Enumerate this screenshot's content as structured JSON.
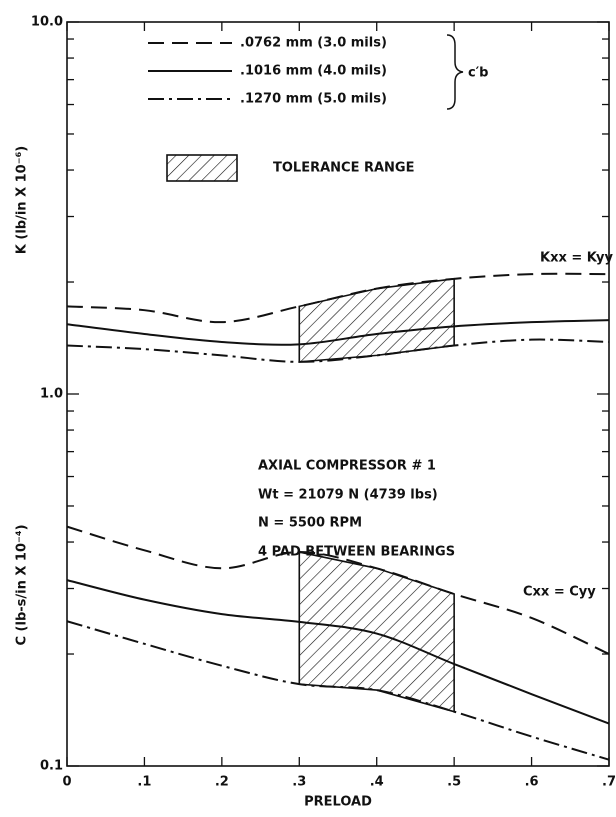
{
  "chart_data": {
    "type": "line",
    "x_label": "PRELOAD",
    "y_labels": [
      "K (lb/in X 10⁻⁶)",
      "C (lb-s/in X 10⁻⁴)"
    ],
    "x": [
      0,
      0.1,
      0.2,
      0.3,
      0.4,
      0.5,
      0.6,
      0.7
    ],
    "xlim": [
      0,
      0.7
    ],
    "xticks": [
      0,
      {
        "value": 0.1,
        "label": ".1"
      },
      {
        "value": 0.2,
        "label": ".2"
      },
      {
        "value": 0.3,
        "label": ".3"
      },
      {
        "value": 0.4,
        "label": ".4"
      },
      {
        "value": 0.5,
        "label": ".5"
      },
      {
        "value": 0.6,
        "label": ".6"
      },
      {
        "value": 0.7,
        "label": ".7"
      }
    ],
    "ylim": [
      0.1,
      10
    ],
    "log_y": true,
    "yticks": [
      0.1,
      {
        "value": 1,
        "label": "1.0"
      },
      {
        "value": 10,
        "label": "10.0"
      }
    ],
    "minor_yticks": [
      0.2,
      0.3,
      0.4,
      0.5,
      0.6,
      0.7,
      0.8,
      0.9,
      2,
      3,
      4,
      5,
      6,
      7,
      8,
      9
    ],
    "legend_title": "c′b",
    "series": [
      {
        "name": ".0762 mm (3.0 mils)",
        "style": "dashed",
        "color": "#111",
        "k_values": [
          1.72,
          1.68,
          1.56,
          1.72,
          1.92,
          2.04,
          2.1,
          2.1
        ],
        "c_values": [
          0.44,
          0.38,
          0.34,
          0.376,
          0.34,
          0.29,
          0.25,
          0.2
        ]
      },
      {
        "name": ".1016 mm (4.0 mils)",
        "style": "solid",
        "color": "#111",
        "k_values": [
          1.54,
          1.45,
          1.38,
          1.36,
          1.45,
          1.52,
          1.56,
          1.58
        ],
        "c_values": [
          0.316,
          0.28,
          0.256,
          0.244,
          0.227,
          0.188,
          0.156,
          0.13
        ]
      },
      {
        "name": ".1270 mm (5.0 mils)",
        "style": "dashdot",
        "color": "#111",
        "k_values": [
          1.35,
          1.32,
          1.27,
          1.22,
          1.27,
          1.35,
          1.4,
          1.38
        ],
        "c_values": [
          0.245,
          0.213,
          0.186,
          0.166,
          0.16,
          0.14,
          0.12,
          0.104
        ]
      }
    ],
    "tolerance": {
      "label": "TOLERANCE RANGE",
      "x_range": [
        0.3,
        0.5
      ]
    },
    "curve_labels": [
      "Kxx = Kyy",
      "Cxx = Cyy"
    ],
    "annotations": [
      "AXIAL COMPRESSOR # 1",
      "Wt = 21079 N (4739 lbs)",
      "N = 5500 RPM",
      "4 PAD BETWEEN BEARINGS"
    ]
  }
}
